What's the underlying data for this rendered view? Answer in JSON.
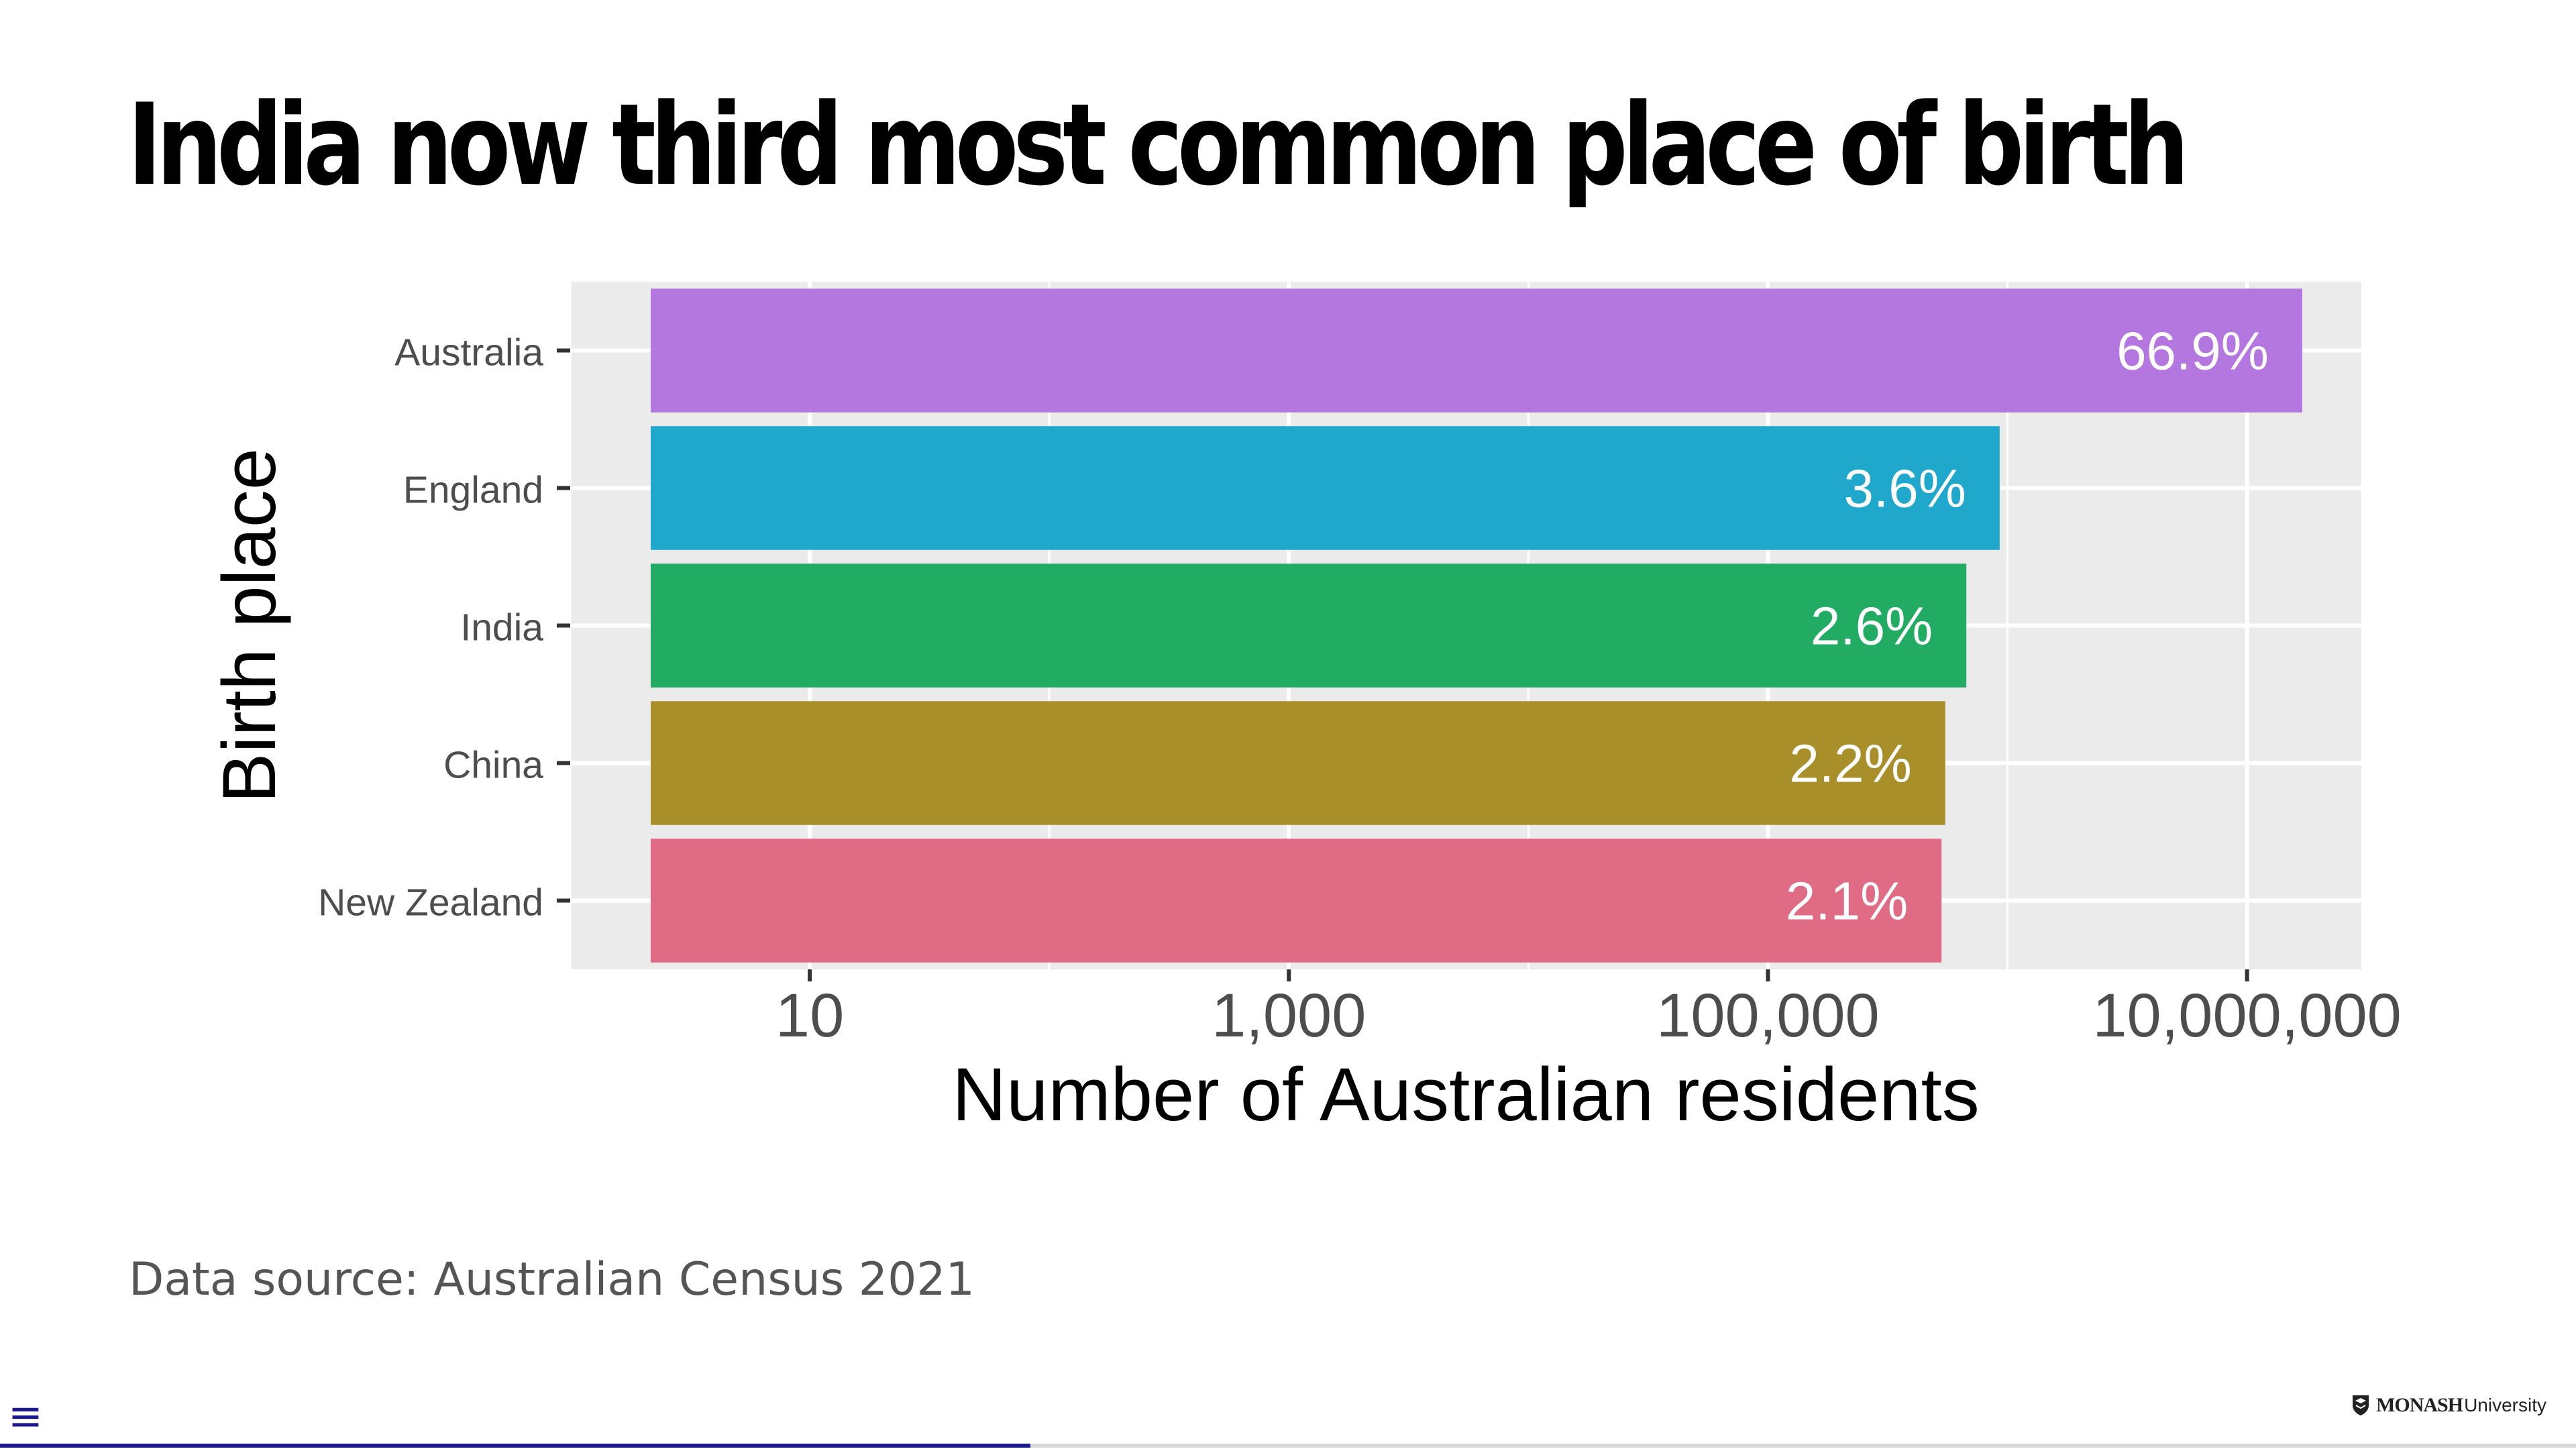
{
  "slide": {
    "title": "India now third most common place of birth",
    "source": "Data source: Australian Census 2021",
    "progress": 0.4
  },
  "nav": {
    "menu_icon": "≡"
  },
  "logo": {
    "strong": "MONASH",
    "light": "University",
    "icon": "shield-icon"
  },
  "chart_data": {
    "type": "bar",
    "orientation": "horizontal",
    "title": "",
    "xlabel": "Number of Australian residents",
    "ylabel": "Birth place",
    "x_scale": "log10",
    "xlim": [
      1,
      30000000
    ],
    "x_ticks": [
      10,
      1000,
      100000,
      10000000
    ],
    "x_tick_labels": [
      "10",
      "1,000",
      "100,000",
      "10,000,000"
    ],
    "grid": true,
    "legend": "none",
    "categories": [
      "Australia",
      "England",
      "India",
      "China",
      "New Zealand"
    ],
    "values": [
      17000000,
      927490,
      673352,
      549618,
      530491
    ],
    "labels": [
      "66.9%",
      "3.6%",
      "2.6%",
      "2.2%",
      "2.1%"
    ],
    "colors": [
      "#b377df",
      "#1fa7cc",
      "#22ab63",
      "#a88f2a",
      "#df6c84"
    ],
    "panel_color": "#ebebeb",
    "grid_color": "#ffffff"
  }
}
